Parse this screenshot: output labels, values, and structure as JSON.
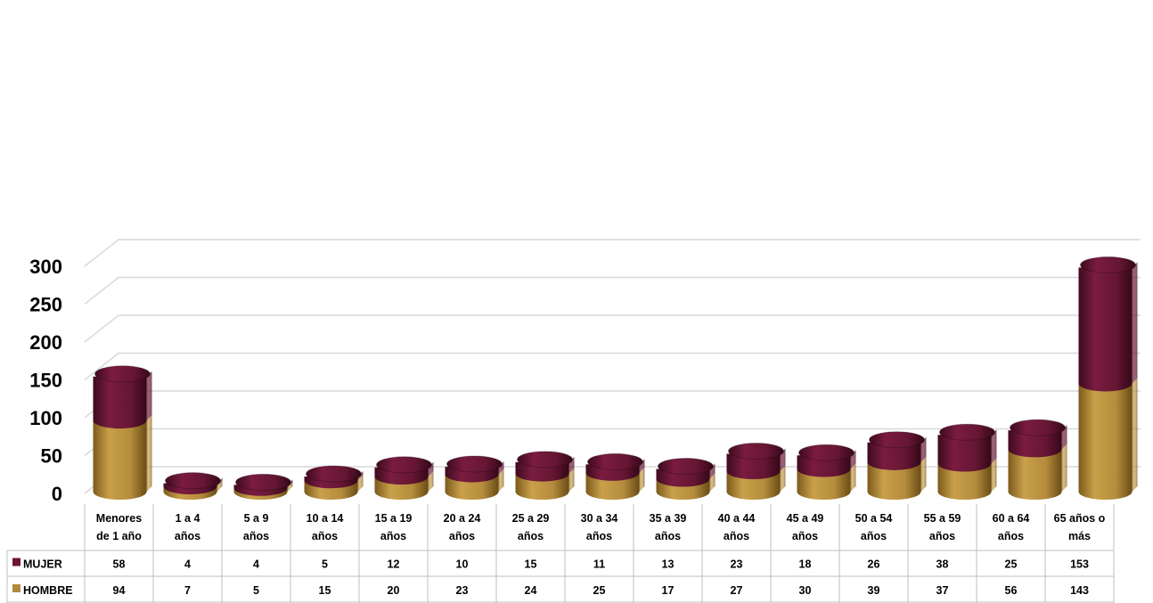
{
  "chart_data": {
    "type": "bar",
    "stacked": true,
    "view": "3d-cylinder",
    "categories": [
      [
        "Menores",
        "de 1 año"
      ],
      [
        "1 a 4",
        "años"
      ],
      [
        "5 a 9",
        "años"
      ],
      [
        "10 a 14",
        "años"
      ],
      [
        "15 a 19",
        "años"
      ],
      [
        "20 a 24",
        "años"
      ],
      [
        "25 a 29",
        "años"
      ],
      [
        "30 a 34",
        "años"
      ],
      [
        "35 a 39",
        "años"
      ],
      [
        "40 a 44",
        "años"
      ],
      [
        "45 a 49",
        "años"
      ],
      [
        "50 a 54",
        "años"
      ],
      [
        "55 a 59",
        "años"
      ],
      [
        "60 a 64",
        "años"
      ],
      [
        "65 años o",
        "más"
      ]
    ],
    "series": [
      {
        "name": "MUJER",
        "color": "#6b1535",
        "values": [
          58,
          4,
          4,
          5,
          12,
          10,
          15,
          11,
          13,
          23,
          18,
          26,
          38,
          25,
          153
        ]
      },
      {
        "name": "HOMBRE",
        "color": "#b08a3a",
        "values": [
          94,
          7,
          5,
          15,
          20,
          23,
          24,
          25,
          17,
          27,
          30,
          39,
          37,
          56,
          143
        ]
      }
    ],
    "y_ticks": [
      "0",
      "50",
      "100",
      "150",
      "200",
      "250",
      "300"
    ],
    "ylim": [
      0,
      300
    ],
    "grid": true,
    "legend": "data-table"
  }
}
